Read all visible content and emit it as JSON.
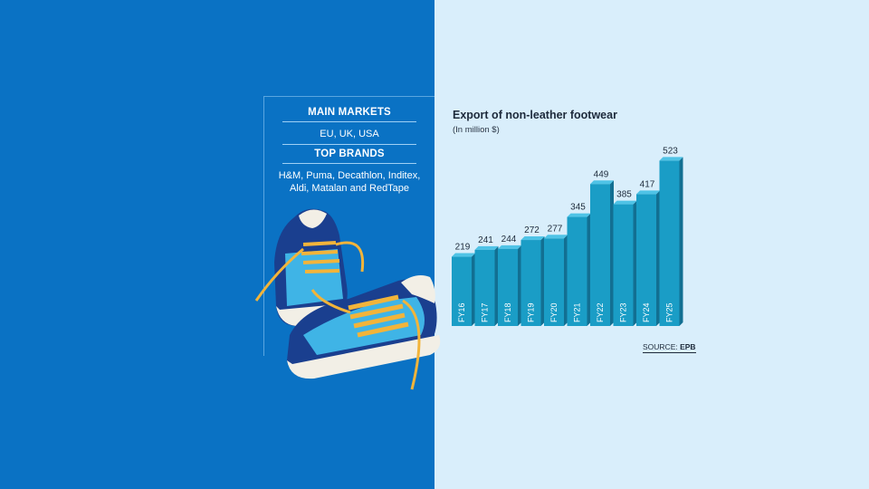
{
  "info": {
    "markets_title": "MAIN MARKETS",
    "markets": "EU, UK, USA",
    "brands_title": "TOP BRANDS",
    "brands_line1": "H&M, Puma, Decathlon, Inditex,",
    "brands_line2": "Aldi, Matalan and RedTape"
  },
  "colors": {
    "left_bg": "#0a72c4",
    "right_bg": "#d9eefb",
    "bar_front": "#1a9dc6",
    "bar_side": "#126f92",
    "bar_top": "#4fc3e6"
  },
  "chart_data": {
    "type": "bar",
    "title": "Export of non-leather footwear",
    "subtitle": "(In million $)",
    "categories": [
      "FY16",
      "FY17",
      "FY18",
      "FY19",
      "FY20",
      "FY21",
      "FY22",
      "FY23",
      "FY24",
      "FY25"
    ],
    "values": [
      219,
      241,
      244,
      272,
      277,
      345,
      449,
      385,
      417,
      523
    ],
    "ylim": [
      0,
      550
    ],
    "grid": false,
    "source_prefix": "SOURCE: ",
    "source": "EPB"
  }
}
